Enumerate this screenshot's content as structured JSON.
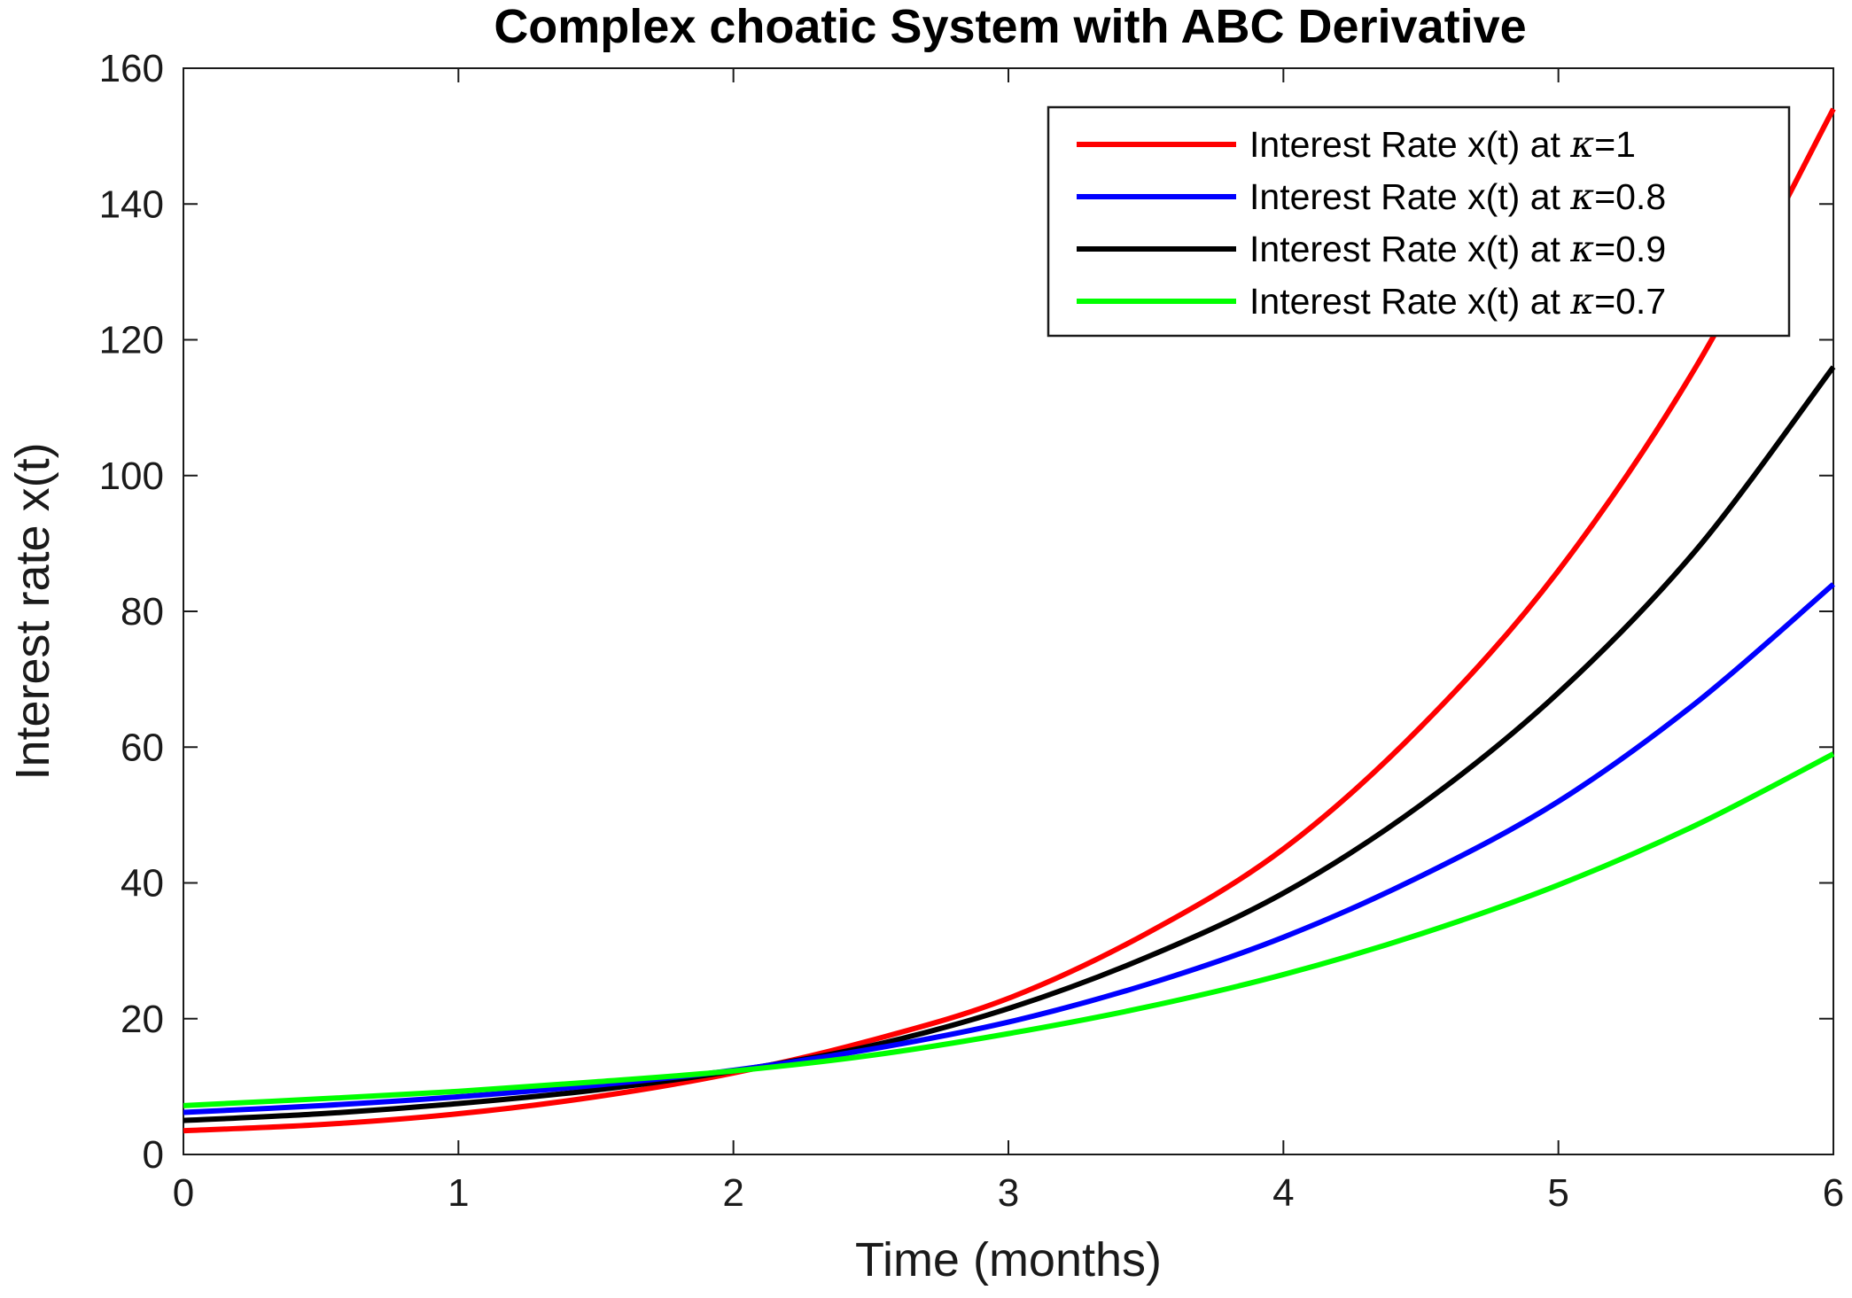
{
  "chart_data": {
    "type": "line",
    "title": "Complex choatic System with ABC Derivative",
    "xlabel": "Time (months)",
    "ylabel": "Interest rate x(t)",
    "xlim": [
      0,
      6
    ],
    "ylim": [
      0,
      160
    ],
    "x_ticks": [
      0,
      1,
      2,
      3,
      4,
      5,
      6
    ],
    "y_ticks": [
      0,
      20,
      40,
      60,
      80,
      100,
      120,
      140,
      160
    ],
    "grid": false,
    "legend_position": "top-right",
    "x": [
      0,
      0.5,
      1,
      1.5,
      2,
      2.5,
      3,
      3.5,
      4,
      4.5,
      5,
      5.5,
      6
    ],
    "series": [
      {
        "name": "Interest Rate x(t) at κ=1",
        "label_prefix": "Interest Rate x(t) at ",
        "label_symbol": "κ",
        "label_suffix": "=1",
        "color": "#ff0000",
        "values": [
          3.5,
          4.4,
          6.0,
          8.5,
          12.0,
          16.8,
          23.0,
          32.5,
          45.0,
          63.0,
          86.0,
          116.0,
          154.0
        ]
      },
      {
        "name": "Interest Rate x(t) at κ=0.8",
        "label_prefix": "Interest Rate x(t) at ",
        "label_symbol": "κ",
        "label_suffix": "=0.8",
        "color": "#0000ff",
        "values": [
          6.2,
          7.2,
          8.5,
          10.2,
          12.4,
          15.5,
          19.5,
          25.0,
          32.0,
          41.0,
          52.0,
          66.5,
          84.0
        ]
      },
      {
        "name": "Interest Rate x(t) at κ=0.9",
        "label_prefix": "Interest Rate x(t) at ",
        "label_symbol": "κ",
        "label_suffix": "=0.9",
        "color": "#000000",
        "values": [
          5.0,
          6.0,
          7.5,
          9.5,
          12.3,
          16.0,
          21.5,
          29.0,
          38.5,
          51.5,
          68.0,
          89.0,
          116.0
        ]
      },
      {
        "name": "Interest Rate x(t) at κ=0.7",
        "label_prefix": "Interest Rate x(t) at ",
        "label_symbol": "κ",
        "label_suffix": "=0.7",
        "color": "#00ff00",
        "values": [
          7.2,
          8.2,
          9.3,
          10.7,
          12.3,
          14.6,
          17.8,
          21.7,
          26.5,
          32.5,
          39.7,
          48.5,
          59.0
        ]
      }
    ]
  }
}
